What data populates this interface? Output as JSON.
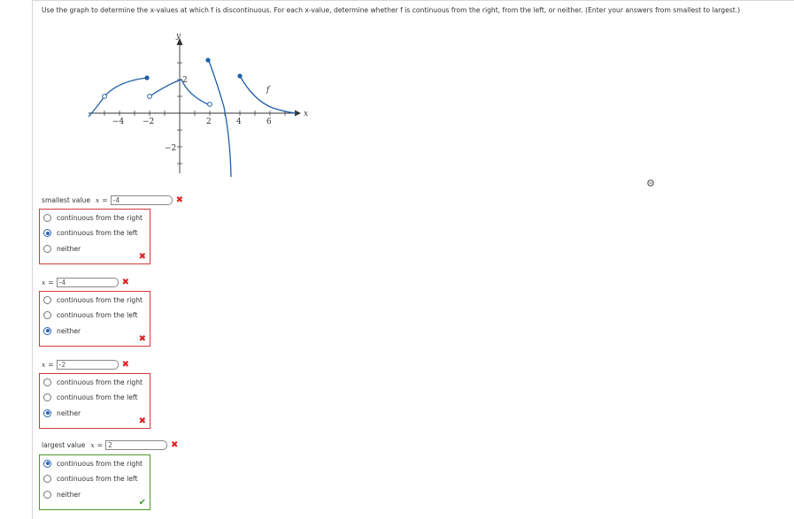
{
  "prompt": {
    "text_a": "Use the graph to determine the x-values at which f is discontinuous. For each x-value, determine whether f is continuous from the right, from the left, or neither. (Enter your answers from smallest to largest.)"
  },
  "graph": {
    "axis_x_label": "x",
    "axis_y_label": "y",
    "curve_label": "f",
    "x_ticks": [
      "−4",
      "−2",
      "2",
      "4",
      "6"
    ],
    "y_ticks": [
      "2",
      "−2"
    ]
  },
  "options": {
    "right": "continuous from the right",
    "left": "continuous from the left",
    "neither": "neither"
  },
  "questions": [
    {
      "prefix": "smallest value",
      "x_label": "x",
      "eq": "=",
      "value": "-4",
      "selected": "left",
      "correct": false,
      "x_mark": "✖",
      "box_mark": "✖"
    },
    {
      "prefix": "",
      "x_label": "x",
      "eq": "=",
      "value": "-4",
      "selected": "neither",
      "correct": false,
      "x_mark": "✖",
      "box_mark": "✖"
    },
    {
      "prefix": "",
      "x_label": "x",
      "eq": "=",
      "value": "-2",
      "selected": "neither",
      "correct": false,
      "x_mark": "✖",
      "box_mark": "✖"
    },
    {
      "prefix": "largest value",
      "x_label": "x",
      "eq": "=",
      "value": "2",
      "selected": "right",
      "correct": true,
      "x_mark": "✖",
      "box_mark": "✔"
    }
  ],
  "colors": {
    "curve": "#1f5fa8",
    "wrong": "#d23a3a",
    "right": "#4a9a2c",
    "radio": "#2a64b3"
  }
}
